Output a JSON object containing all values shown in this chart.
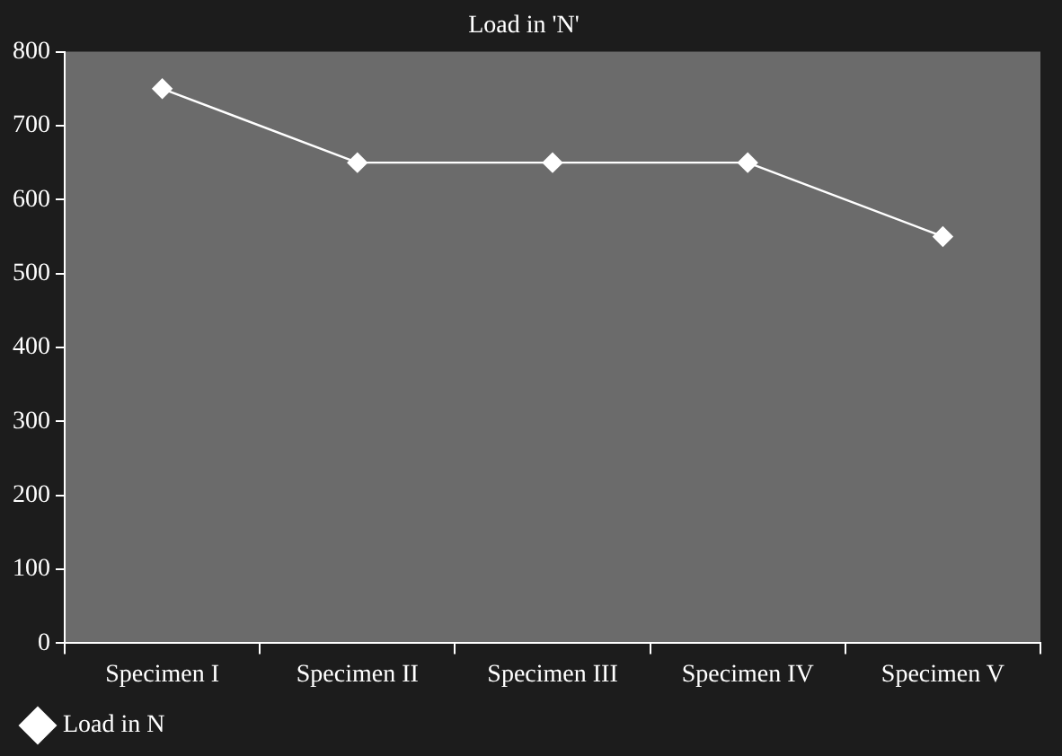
{
  "chart_data": {
    "type": "line",
    "title": "Load in 'N'",
    "categories": [
      "Specimen I",
      "Specimen II",
      "Specimen III",
      "Specimen IV",
      "Specimen V"
    ],
    "series": [
      {
        "name": "Load in N",
        "color": "#ffffff",
        "values": [
          750,
          650,
          650,
          650,
          550
        ]
      }
    ],
    "ylim": [
      0,
      800
    ],
    "yticks": [
      0,
      100,
      200,
      300,
      400,
      500,
      600,
      700,
      800
    ],
    "grid": false,
    "legend": "bottom left",
    "marker": "diamond",
    "line_style": "solid"
  }
}
